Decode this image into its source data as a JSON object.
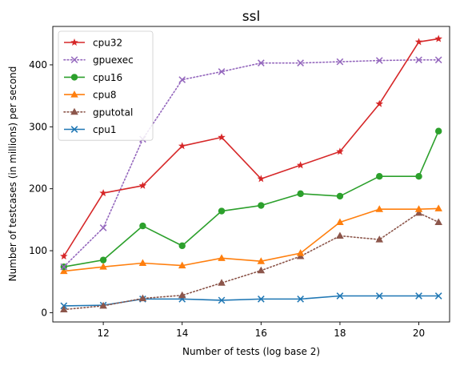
{
  "chart_data": {
    "type": "line",
    "title": "ssl",
    "xlabel": "Number of tests (log base 2)",
    "ylabel": "Number of testcases (in millions) per second",
    "xlim": [
      10.72,
      20.78
    ],
    "ylim": [
      -15,
      462
    ],
    "xticks": [
      12,
      14,
      16,
      18,
      20
    ],
    "yticks": [
      0,
      100,
      200,
      300,
      400
    ],
    "grid": false,
    "legend_position": "upper-left",
    "x": [
      11,
      12,
      13,
      14,
      15,
      16,
      17,
      18,
      19,
      20,
      20.5
    ],
    "series": [
      {
        "name": "cpu32",
        "color": "#d62728",
        "marker": "star",
        "dash": "solid",
        "values": [
          91,
          193,
          205,
          269,
          283,
          216,
          238,
          260,
          337,
          437,
          442
        ]
      },
      {
        "name": "gpuexec",
        "color": "#9467bd",
        "marker": "x",
        "dash": "dotted",
        "values": [
          74,
          137,
          280,
          376,
          389,
          403,
          403,
          405,
          407,
          408,
          408
        ]
      },
      {
        "name": "cpu16",
        "color": "#2ca02c",
        "marker": "circle",
        "dash": "solid",
        "values": [
          74,
          85,
          140,
          108,
          164,
          173,
          192,
          188,
          220,
          220,
          293
        ]
      },
      {
        "name": "cpu8",
        "color": "#ff7f0e",
        "marker": "triangle",
        "dash": "solid",
        "values": [
          67,
          74,
          80,
          76,
          88,
          83,
          96,
          146,
          167,
          167,
          168
        ]
      },
      {
        "name": "gputotal",
        "color": "#8c564b",
        "marker": "triangle",
        "dash": "dotted",
        "values": [
          5,
          11,
          23,
          28,
          48,
          68,
          91,
          124,
          118,
          161,
          146
        ]
      },
      {
        "name": "cpu1",
        "color": "#1f77b4",
        "marker": "x",
        "dash": "solid",
        "values": [
          11,
          12,
          22,
          22,
          20,
          22,
          22,
          27,
          27,
          27,
          27
        ]
      }
    ]
  }
}
